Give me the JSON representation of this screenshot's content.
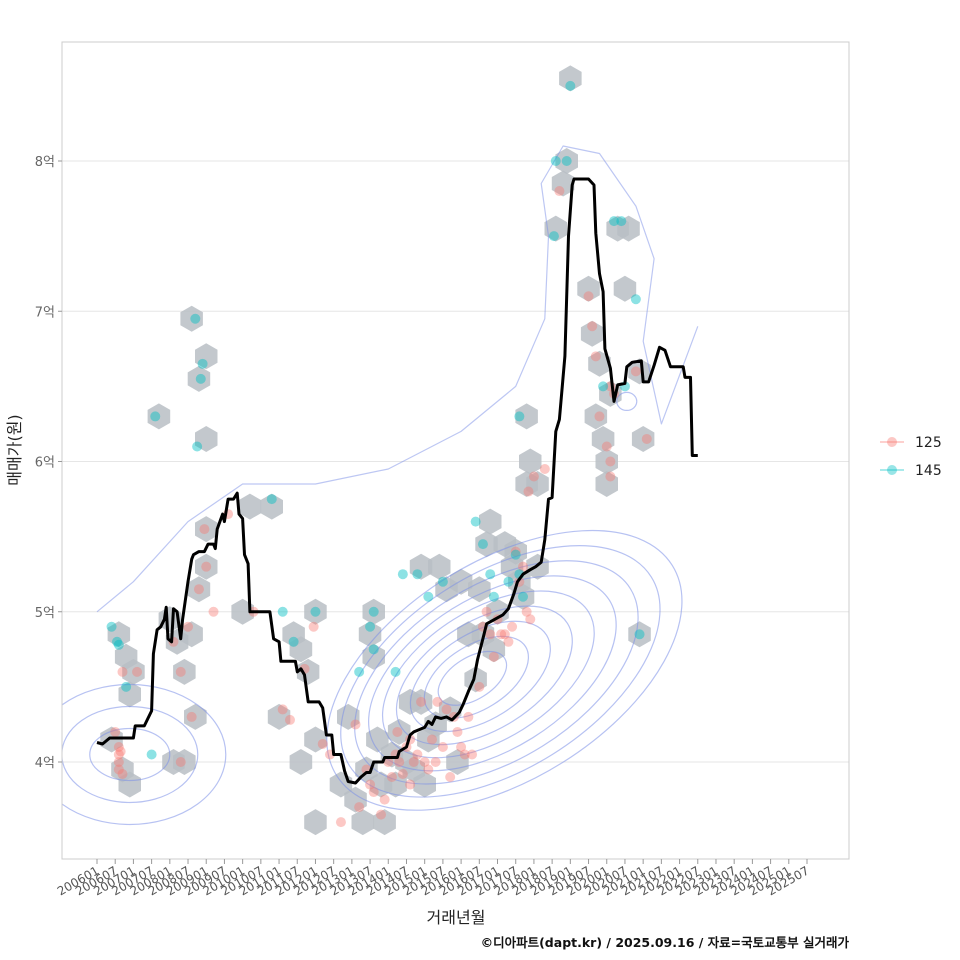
{
  "chart_data": {
    "type": "scatter",
    "title": "",
    "xlabel": "거래년월",
    "ylabel": "매매가(원)",
    "caption": "©디아파트(dapt.kr) / 2025.09.16 / 자료=국토교통부 실거래가",
    "xlim": [
      2005.05,
      2027.1
    ],
    "ylim": [
      3.4,
      8.85
    ],
    "grid": true,
    "legend_position": "right",
    "y_ticks": [
      {
        "value": 4,
        "label": "4억"
      },
      {
        "value": 5,
        "label": "5억"
      },
      {
        "value": 6,
        "label": "6억"
      },
      {
        "value": 7,
        "label": "7억"
      },
      {
        "value": 8,
        "label": "8억"
      }
    ],
    "x_tick_labels": [
      "200601",
      "200607",
      "200701",
      "200707",
      "200801",
      "200807",
      "200901",
      "200907",
      "201001",
      "201007",
      "201101",
      "201107",
      "201201",
      "201207",
      "201301",
      "201307",
      "201401",
      "201407",
      "201501",
      "201507",
      "201601",
      "201607",
      "201701",
      "201707",
      "201801",
      "201807",
      "201901",
      "201907",
      "202001",
      "202007",
      "202101",
      "202107",
      "202201",
      "202207",
      "202301",
      "202307",
      "202401",
      "202407",
      "202501",
      "202507"
    ],
    "x_tick_start": 2006.0,
    "x_tick_step": 0.5,
    "legend": [
      {
        "name": "125",
        "color": "#F8766D"
      },
      {
        "name": "145",
        "color": "#00BFC4"
      }
    ],
    "colors": {
      "hex": "#B9BEC4",
      "contour": "#7B8FE8",
      "trend": "#000000",
      "grid": "#E6E6E6",
      "panel_border": "#CCCCCC"
    },
    "hexbins": [
      [
        2006.4,
        4.15
      ],
      [
        2006.6,
        4.85
      ],
      [
        2006.8,
        4.7
      ],
      [
        2006.9,
        4.45
      ],
      [
        2007.0,
        4.6
      ],
      [
        2006.7,
        3.95
      ],
      [
        2006.9,
        3.85
      ],
      [
        2007.7,
        6.3
      ],
      [
        2008.0,
        4.95
      ],
      [
        2008.2,
        4.8
      ],
      [
        2008.1,
        4.0
      ],
      [
        2008.4,
        4.0
      ],
      [
        2008.4,
        4.6
      ],
      [
        2008.6,
        4.85
      ],
      [
        2008.7,
        4.3
      ],
      [
        2008.6,
        6.95
      ],
      [
        2009.0,
        6.7
      ],
      [
        2008.8,
        6.55
      ],
      [
        2009.0,
        6.15
      ],
      [
        2009.0,
        5.55
      ],
      [
        2008.8,
        5.15
      ],
      [
        2009.0,
        5.3
      ],
      [
        2010.0,
        5.0
      ],
      [
        2010.2,
        5.7
      ],
      [
        2010.8,
        5.7
      ],
      [
        2011.0,
        4.3
      ],
      [
        2011.4,
        4.85
      ],
      [
        2011.6,
        4.75
      ],
      [
        2011.8,
        4.6
      ],
      [
        2011.6,
        4.0
      ],
      [
        2012.0,
        5.0
      ],
      [
        2012.0,
        4.15
      ],
      [
        2012.0,
        3.6
      ],
      [
        2012.9,
        4.3
      ],
      [
        2012.7,
        3.85
      ],
      [
        2013.1,
        3.75
      ],
      [
        2013.3,
        3.6
      ],
      [
        2013.5,
        4.85
      ],
      [
        2013.6,
        5.0
      ],
      [
        2013.6,
        4.7
      ],
      [
        2013.7,
        4.15
      ],
      [
        2013.9,
        3.6
      ],
      [
        2013.4,
        3.95
      ],
      [
        2013.8,
        3.85
      ],
      [
        2014.1,
        4.05
      ],
      [
        2014.2,
        3.85
      ],
      [
        2014.3,
        4.2
      ],
      [
        2014.5,
        4.0
      ],
      [
        2014.6,
        4.4
      ],
      [
        2014.7,
        3.95
      ],
      [
        2014.9,
        5.3
      ],
      [
        2014.9,
        4.4
      ],
      [
        2015.0,
        3.85
      ],
      [
        2015.1,
        4.15
      ],
      [
        2015.4,
        5.3
      ],
      [
        2015.3,
        4.25
      ],
      [
        2015.6,
        5.15
      ],
      [
        2015.7,
        4.35
      ],
      [
        2015.9,
        4.0
      ],
      [
        2016.0,
        5.2
      ],
      [
        2016.2,
        4.85
      ],
      [
        2016.4,
        4.55
      ],
      [
        2016.5,
        5.15
      ],
      [
        2016.6,
        4.85
      ],
      [
        2016.7,
        5.45
      ],
      [
        2016.8,
        5.6
      ],
      [
        2016.9,
        4.75
      ],
      [
        2017.0,
        5.0
      ],
      [
        2017.2,
        5.45
      ],
      [
        2017.4,
        5.3
      ],
      [
        2017.5,
        5.4
      ],
      [
        2017.6,
        5.2
      ],
      [
        2017.7,
        5.1
      ],
      [
        2017.8,
        5.85
      ],
      [
        2017.9,
        6.0
      ],
      [
        2017.8,
        6.3
      ],
      [
        2018.1,
        5.85
      ],
      [
        2018.1,
        5.3
      ],
      [
        2018.6,
        7.55
      ],
      [
        2018.8,
        7.85
      ],
      [
        2018.9,
        8.0
      ],
      [
        2019.0,
        8.55
      ],
      [
        2019.5,
        7.15
      ],
      [
        2019.6,
        6.85
      ],
      [
        2019.7,
        6.3
      ],
      [
        2019.8,
        6.65
      ],
      [
        2019.9,
        6.15
      ],
      [
        2020.0,
        6.0
      ],
      [
        2020.0,
        5.85
      ],
      [
        2020.1,
        6.45
      ],
      [
        2020.3,
        7.55
      ],
      [
        2020.6,
        7.55
      ],
      [
        2020.5,
        7.15
      ],
      [
        2020.9,
        6.6
      ],
      [
        2021.0,
        6.15
      ],
      [
        2020.9,
        4.85
      ]
    ],
    "points_125": [
      [
        2006.5,
        4.2
      ],
      [
        2006.6,
        4.1
      ],
      [
        2006.6,
        4.05
      ],
      [
        2006.6,
        4.0
      ],
      [
        2006.6,
        3.95
      ],
      [
        2006.7,
        3.92
      ],
      [
        2006.65,
        4.07
      ],
      [
        2006.7,
        4.6
      ],
      [
        2007.1,
        4.6
      ],
      [
        2008.1,
        4.8
      ],
      [
        2008.3,
        4.6
      ],
      [
        2008.3,
        4.0
      ],
      [
        2008.5,
        4.9
      ],
      [
        2008.6,
        4.3
      ],
      [
        2008.8,
        5.15
      ],
      [
        2009.0,
        5.3
      ],
      [
        2009.2,
        5.0
      ],
      [
        2008.95,
        5.55
      ],
      [
        2009.6,
        5.65
      ],
      [
        2010.3,
        5.0
      ],
      [
        2011.1,
        4.35
      ],
      [
        2011.3,
        4.28
      ],
      [
        2011.7,
        4.62
      ],
      [
        2011.95,
        4.9
      ],
      [
        2012.2,
        4.12
      ],
      [
        2012.4,
        4.05
      ],
      [
        2012.7,
        3.6
      ],
      [
        2013.1,
        4.25
      ],
      [
        2013.2,
        3.7
      ],
      [
        2013.4,
        3.95
      ],
      [
        2013.5,
        3.85
      ],
      [
        2013.6,
        3.8
      ],
      [
        2013.8,
        3.65
      ],
      [
        2013.9,
        3.75
      ],
      [
        2014.0,
        4.0
      ],
      [
        2014.1,
        3.9
      ],
      [
        2014.2,
        4.05
      ],
      [
        2014.25,
        4.2
      ],
      [
        2014.3,
        4.0
      ],
      [
        2014.4,
        3.92
      ],
      [
        2014.5,
        4.1
      ],
      [
        2014.6,
        4.15
      ],
      [
        2014.6,
        3.85
      ],
      [
        2014.7,
        4.0
      ],
      [
        2014.8,
        4.05
      ],
      [
        2014.9,
        4.4
      ],
      [
        2015.0,
        4.0
      ],
      [
        2015.1,
        3.95
      ],
      [
        2015.2,
        4.15
      ],
      [
        2015.3,
        4.0
      ],
      [
        2015.35,
        4.4
      ],
      [
        2015.5,
        4.1
      ],
      [
        2015.6,
        4.35
      ],
      [
        2015.7,
        3.9
      ],
      [
        2015.8,
        4.3
      ],
      [
        2015.9,
        4.2
      ],
      [
        2016.0,
        4.1
      ],
      [
        2016.1,
        4.05
      ],
      [
        2016.2,
        4.3
      ],
      [
        2016.5,
        4.5
      ],
      [
        2016.6,
        4.9
      ],
      [
        2016.7,
        5.0
      ],
      [
        2016.8,
        4.85
      ],
      [
        2016.9,
        4.7
      ],
      [
        2017.0,
        4.95
      ],
      [
        2017.1,
        4.85
      ],
      [
        2017.2,
        4.85
      ],
      [
        2017.3,
        4.8
      ],
      [
        2017.4,
        4.9
      ],
      [
        2017.5,
        5.4
      ],
      [
        2017.6,
        5.2
      ],
      [
        2017.7,
        5.3
      ],
      [
        2017.8,
        5.0
      ],
      [
        2017.9,
        4.95
      ],
      [
        2017.85,
        5.8
      ],
      [
        2018.0,
        5.9
      ],
      [
        2018.3,
        5.95
      ],
      [
        2018.7,
        7.8
      ],
      [
        2019.5,
        7.1
      ],
      [
        2019.6,
        6.9
      ],
      [
        2019.7,
        6.7
      ],
      [
        2019.8,
        6.3
      ],
      [
        2020.0,
        6.1
      ],
      [
        2020.1,
        6.0
      ],
      [
        2020.1,
        5.9
      ],
      [
        2020.1,
        6.5
      ],
      [
        2020.2,
        6.45
      ],
      [
        2020.8,
        6.6
      ],
      [
        2021.1,
        6.15
      ],
      [
        2016.3,
        4.05
      ]
    ],
    "points_145": [
      [
        2006.4,
        4.9
      ],
      [
        2006.55,
        4.8
      ],
      [
        2006.6,
        4.78
      ],
      [
        2006.8,
        4.5
      ],
      [
        2007.6,
        6.3
      ],
      [
        2007.5,
        4.05
      ],
      [
        2008.7,
        6.95
      ],
      [
        2008.9,
        6.65
      ],
      [
        2008.85,
        6.55
      ],
      [
        2008.75,
        6.1
      ],
      [
        2010.8,
        5.75
      ],
      [
        2011.1,
        5.0
      ],
      [
        2011.4,
        4.8
      ],
      [
        2012.0,
        5.0
      ],
      [
        2013.2,
        4.6
      ],
      [
        2013.5,
        4.9
      ],
      [
        2013.6,
        5.0
      ],
      [
        2013.6,
        4.75
      ],
      [
        2014.2,
        4.6
      ],
      [
        2014.4,
        5.25
      ],
      [
        2014.8,
        5.25
      ],
      [
        2015.1,
        5.1
      ],
      [
        2015.5,
        5.2
      ],
      [
        2016.4,
        5.6
      ],
      [
        2016.6,
        5.45
      ],
      [
        2016.8,
        5.25
      ],
      [
        2016.9,
        5.1
      ],
      [
        2017.3,
        5.2
      ],
      [
        2017.5,
        5.38
      ],
      [
        2017.6,
        5.25
      ],
      [
        2017.7,
        5.1
      ],
      [
        2017.6,
        6.3
      ],
      [
        2018.6,
        8.0
      ],
      [
        2018.9,
        8.0
      ],
      [
        2018.55,
        7.5
      ],
      [
        2019.0,
        8.5
      ],
      [
        2020.2,
        7.6
      ],
      [
        2020.4,
        7.6
      ],
      [
        2019.9,
        6.5
      ],
      [
        2020.8,
        7.08
      ],
      [
        2020.5,
        6.5
      ],
      [
        2020.9,
        4.85
      ]
    ],
    "trend_line": [
      [
        2006.0,
        4.13
      ],
      [
        2006.15,
        4.12
      ],
      [
        2006.25,
        4.14
      ],
      [
        2006.35,
        4.16
      ],
      [
        2006.7,
        4.16
      ],
      [
        2007.0,
        4.16
      ],
      [
        2007.05,
        4.24
      ],
      [
        2007.3,
        4.24
      ],
      [
        2007.5,
        4.34
      ],
      [
        2007.55,
        4.72
      ],
      [
        2007.65,
        4.88
      ],
      [
        2007.75,
        4.9
      ],
      [
        2007.85,
        4.95
      ],
      [
        2007.9,
        5.03
      ],
      [
        2007.95,
        4.82
      ],
      [
        2008.05,
        4.8
      ],
      [
        2008.1,
        5.02
      ],
      [
        2008.2,
        5.0
      ],
      [
        2008.3,
        4.82
      ],
      [
        2008.35,
        4.95
      ],
      [
        2008.5,
        5.2
      ],
      [
        2008.6,
        5.35
      ],
      [
        2008.65,
        5.38
      ],
      [
        2008.8,
        5.4
      ],
      [
        2008.95,
        5.4
      ],
      [
        2009.05,
        5.45
      ],
      [
        2009.2,
        5.45
      ],
      [
        2009.25,
        5.42
      ],
      [
        2009.3,
        5.55
      ],
      [
        2009.45,
        5.65
      ],
      [
        2009.5,
        5.6
      ],
      [
        2009.6,
        5.75
      ],
      [
        2009.75,
        5.75
      ],
      [
        2009.85,
        5.79
      ],
      [
        2009.9,
        5.65
      ],
      [
        2010.0,
        5.62
      ],
      [
        2010.05,
        5.38
      ],
      [
        2010.15,
        5.32
      ],
      [
        2010.2,
        5.0
      ],
      [
        2010.6,
        5.0
      ],
      [
        2010.75,
        5.0
      ],
      [
        2010.85,
        4.82
      ],
      [
        2011.0,
        4.8
      ],
      [
        2011.05,
        4.67
      ],
      [
        2011.45,
        4.67
      ],
      [
        2011.5,
        4.6
      ],
      [
        2011.6,
        4.62
      ],
      [
        2011.7,
        4.58
      ],
      [
        2011.8,
        4.4
      ],
      [
        2012.1,
        4.4
      ],
      [
        2012.2,
        4.36
      ],
      [
        2012.3,
        4.18
      ],
      [
        2012.45,
        4.18
      ],
      [
        2012.5,
        4.05
      ],
      [
        2012.7,
        4.05
      ],
      [
        2012.8,
        3.94
      ],
      [
        2012.9,
        3.87
      ],
      [
        2013.1,
        3.86
      ],
      [
        2013.25,
        3.9
      ],
      [
        2013.4,
        3.93
      ],
      [
        2013.5,
        3.93
      ],
      [
        2013.6,
        4.0
      ],
      [
        2013.85,
        4.0
      ],
      [
        2013.9,
        4.03
      ],
      [
        2014.25,
        4.03
      ],
      [
        2014.3,
        4.07
      ],
      [
        2014.5,
        4.1
      ],
      [
        2014.6,
        4.18
      ],
      [
        2014.7,
        4.2
      ],
      [
        2015.0,
        4.23
      ],
      [
        2015.1,
        4.27
      ],
      [
        2015.2,
        4.25
      ],
      [
        2015.3,
        4.3
      ],
      [
        2015.45,
        4.29
      ],
      [
        2015.6,
        4.3
      ],
      [
        2015.75,
        4.28
      ],
      [
        2015.95,
        4.33
      ],
      [
        2016.05,
        4.38
      ],
      [
        2016.2,
        4.47
      ],
      [
        2016.35,
        4.55
      ],
      [
        2016.45,
        4.68
      ],
      [
        2016.6,
        4.82
      ],
      [
        2016.7,
        4.92
      ],
      [
        2016.85,
        4.94
      ],
      [
        2017.0,
        4.96
      ],
      [
        2017.15,
        4.98
      ],
      [
        2017.3,
        5.02
      ],
      [
        2017.45,
        5.12
      ],
      [
        2017.55,
        5.2
      ],
      [
        2017.7,
        5.25
      ],
      [
        2017.9,
        5.28
      ],
      [
        2018.05,
        5.3
      ],
      [
        2018.2,
        5.33
      ],
      [
        2018.3,
        5.48
      ],
      [
        2018.4,
        5.75
      ],
      [
        2018.5,
        5.76
      ],
      [
        2018.6,
        6.2
      ],
      [
        2018.7,
        6.28
      ],
      [
        2018.85,
        6.7
      ],
      [
        2018.95,
        7.5
      ],
      [
        2019.05,
        7.84
      ],
      [
        2019.1,
        7.88
      ],
      [
        2019.5,
        7.88
      ],
      [
        2019.65,
        7.84
      ],
      [
        2019.7,
        7.52
      ],
      [
        2019.8,
        7.25
      ],
      [
        2019.9,
        7.13
      ],
      [
        2019.95,
        6.75
      ],
      [
        2020.1,
        6.62
      ],
      [
        2020.2,
        6.4
      ],
      [
        2020.3,
        6.51
      ],
      [
        2020.5,
        6.52
      ],
      [
        2020.55,
        6.63
      ],
      [
        2020.7,
        6.66
      ],
      [
        2020.95,
        6.67
      ],
      [
        2021.0,
        6.53
      ],
      [
        2021.15,
        6.53
      ],
      [
        2021.3,
        6.64
      ],
      [
        2021.45,
        6.76
      ],
      [
        2021.6,
        6.74
      ],
      [
        2021.75,
        6.63
      ],
      [
        2022.1,
        6.63
      ],
      [
        2022.15,
        6.56
      ],
      [
        2022.3,
        6.56
      ],
      [
        2022.35,
        6.04
      ],
      [
        2022.5,
        6.04
      ]
    ],
    "contours": [
      {
        "level": 1,
        "path": [
          [
            2006.0,
            5.0
          ],
          [
            2007.0,
            5.2
          ],
          [
            2008.5,
            5.6
          ],
          [
            2010.0,
            5.85
          ],
          [
            2012.0,
            5.85
          ],
          [
            2014.0,
            5.95
          ],
          [
            2016.0,
            6.2
          ],
          [
            2017.5,
            6.5
          ],
          [
            2018.3,
            6.95
          ],
          [
            2018.4,
            7.5
          ],
          [
            2018.2,
            7.85
          ],
          [
            2018.8,
            8.1
          ],
          [
            2019.8,
            8.05
          ],
          [
            2020.8,
            7.7
          ],
          [
            2021.3,
            7.35
          ],
          [
            2021.0,
            6.8
          ],
          [
            2021.5,
            6.25
          ],
          [
            2022.5,
            6.9
          ]
        ]
      }
    ]
  }
}
